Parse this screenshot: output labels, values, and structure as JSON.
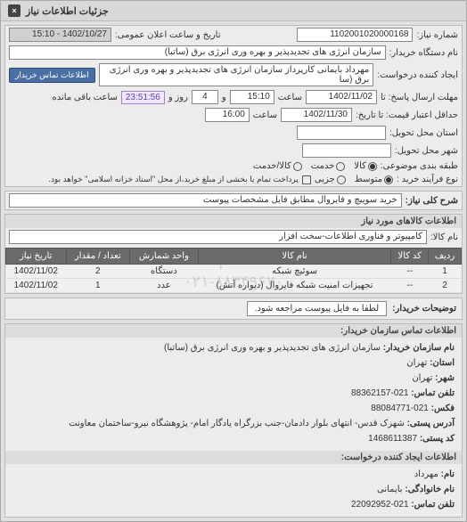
{
  "header": {
    "title": "جزئیات اطلاعات نیاز",
    "close": "×"
  },
  "top": {
    "need_no_label": "شماره نیاز:",
    "need_no": "1102001020000168",
    "datetime_label": "تاریخ و ساعت اعلان عمومی:",
    "datetime": "1402/10/27 - 15:10",
    "buyer_org_label": "نام دستگاه خریدار:",
    "buyer_org": "سازمان انرژی های تجدیدپذیر و بهره وری انرژی برق (ساتبا)",
    "requester_label": "ایجاد کننده درخواست:",
    "requester": "مهرداد بایمانی کارپرداز سازمان انرژی های تجدیدپذیر و بهره وری انرژی برق (سا",
    "contact_btn": "اطلاعات تماس خریدار",
    "deadline_label": "مهلت ارسال پاسخ: تا",
    "deadline_date": "1402/11/02",
    "time_label": "ساعت",
    "deadline_time": "15:10",
    "and": "و",
    "days": "4",
    "days_label": "روز و",
    "remaining": "23:51:56",
    "remaining_label": "ساعت باقی مانده",
    "valid_until_label": "حداقل اعتبار قیمت: تا تاریخ:",
    "valid_until_date": "1402/11/30",
    "valid_until_time": "16:00",
    "delivery_province_label": "استان محل تحویل:",
    "delivery_city_label": "شهر محل تحویل:",
    "category_label": "طبقه بندی موضوعی:",
    "cat_goods": "کالا",
    "cat_service": "خدمت",
    "cat_both": "کالا/خدمت",
    "process_type_label": "نوع فرآیند خرید :",
    "proc_small": "متوسط",
    "proc_partial": "جزیی",
    "process_note": "پرداخت تمام یا بخشی از مبلغ خرید،از محل \"اسناد خزانه اسلامی\" خواهد بود."
  },
  "summary": {
    "label": "شرح کلی نیاز:",
    "text": "خرید سوییچ و فایروال مطابق فایل مشخصات پیوست"
  },
  "goods": {
    "section_title": "اطلاعات کالاهای مورد نیاز",
    "group_label": "نام کالا:",
    "group_text": "کامپیوتر و فناوری اطلاعات-سخت افزار",
    "columns": {
      "row": "ردیف",
      "code": "کد کالا",
      "name": "نام کالا",
      "unit": "واحد شمارش",
      "qty": "تعداد / مقدار",
      "date": "تاریخ نیاز"
    },
    "rows": [
      {
        "row": "1",
        "code": "--",
        "name": "سوئیچ شبکه",
        "unit": "دستگاه",
        "qty": "2",
        "date": "1402/11/02"
      },
      {
        "row": "2",
        "code": "--",
        "name": "تجهیزات امنیت شبکه فایروال (دیواره آتش)",
        "unit": "عدد",
        "qty": "1",
        "date": "1402/11/02"
      }
    ]
  },
  "buyer_note": {
    "label": "توضیحات خریدار:",
    "text": "لطفا به فایل پیوست مراجعه شود."
  },
  "contact": {
    "section_title": "اطلاعات تماس سازمان خریدار:",
    "org_label": "نام سازمان خریدار:",
    "org": "سازمان انرژی های تجدیدپذیر و بهره وری انرژی برق (ساتبا)",
    "province_label": "استان:",
    "province": "تهران",
    "city_label": "شهر:",
    "city": "تهران",
    "phone_label": "تلفن تماس:",
    "phone": "021-88362157",
    "fax_label": "فکس:",
    "fax": "021-88084771",
    "postal_label": "آدرس پستی:",
    "postal": "شهرک قدس- انتهای بلوار دادمان-جنب بزرگراه یادگار امام- پژوهشگاه نیرو-ساختمان معاونت",
    "zip_label": "کد پستی:",
    "zip": "1468611387"
  },
  "requester_info": {
    "section_title": "اطلاعات ایجاد کننده درخواست:",
    "fname_label": "نام:",
    "fname": "مهرداد",
    "lname_label": "نام خانوادگی:",
    "lname": "بایمانی",
    "phone_label": "تلفن تماس:",
    "phone": "021-22092952"
  },
  "watermark": {
    "line1": "اسـتـعلام ۶۷۰",
    "line2": "۰۲۱-۸۸۳۴۹۶۷۰"
  }
}
